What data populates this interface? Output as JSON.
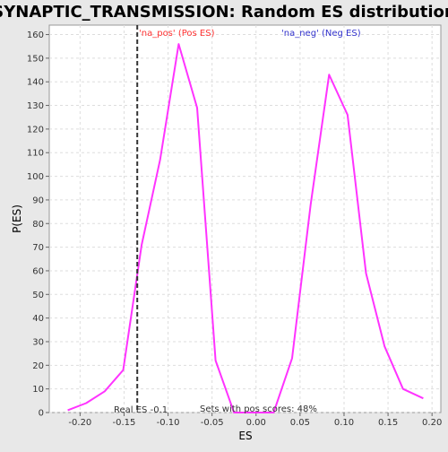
{
  "chart_data": {
    "type": "line",
    "title": "SYNAPTIC_TRANSMISSION: Random ES distribution",
    "xlabel": "ES",
    "ylabel": "P(ES)",
    "xlim": [
      -0.235,
      0.21
    ],
    "ylim": [
      0,
      164
    ],
    "xticks": [
      "-0.20",
      "-0.15",
      "-0.10",
      "-0.05",
      "0.00",
      "0.05",
      "0.10",
      "0.15",
      "0.20"
    ],
    "xtick_values": [
      -0.2,
      -0.15,
      -0.1,
      -0.05,
      0.0,
      0.05,
      0.1,
      0.15,
      0.2
    ],
    "yticks": [
      "0",
      "10",
      "20",
      "30",
      "40",
      "50",
      "60",
      "70",
      "80",
      "90",
      "100",
      "110",
      "120",
      "130",
      "140",
      "150",
      "160"
    ],
    "ytick_values": [
      0,
      10,
      20,
      30,
      40,
      50,
      60,
      70,
      80,
      90,
      100,
      110,
      120,
      130,
      140,
      150,
      160
    ],
    "grid": true,
    "series": [
      {
        "color": "#ff33ff",
        "x": [
          -0.214,
          -0.193,
          -0.172,
          -0.151,
          -0.13,
          -0.109,
          -0.088,
          -0.067,
          -0.046,
          -0.025,
          -0.004,
          0.02,
          0.041,
          0.062,
          0.083,
          0.104,
          0.125,
          0.146,
          0.167,
          0.19
        ],
        "y": [
          1,
          4,
          9,
          18,
          71,
          107,
          156,
          129,
          22,
          0,
          0,
          0,
          23,
          88,
          143,
          126,
          59,
          28,
          10,
          6
        ]
      }
    ],
    "real_es": -0.135,
    "annotations": {
      "pos_label": "'na_pos' (Pos ES)",
      "neg_label": "'na_neg' (Neg ES)",
      "real_es_label": "Real ES -0.1",
      "sets_label": "Sets with pos scores: 48%"
    },
    "colors": {
      "series": "#ff33ff",
      "pos_label": "#ff3333",
      "neg_label": "#3333cc",
      "grid": "#dddddd",
      "plot_bg": "#ffffff",
      "page_bg": "#e8e8e8"
    }
  }
}
